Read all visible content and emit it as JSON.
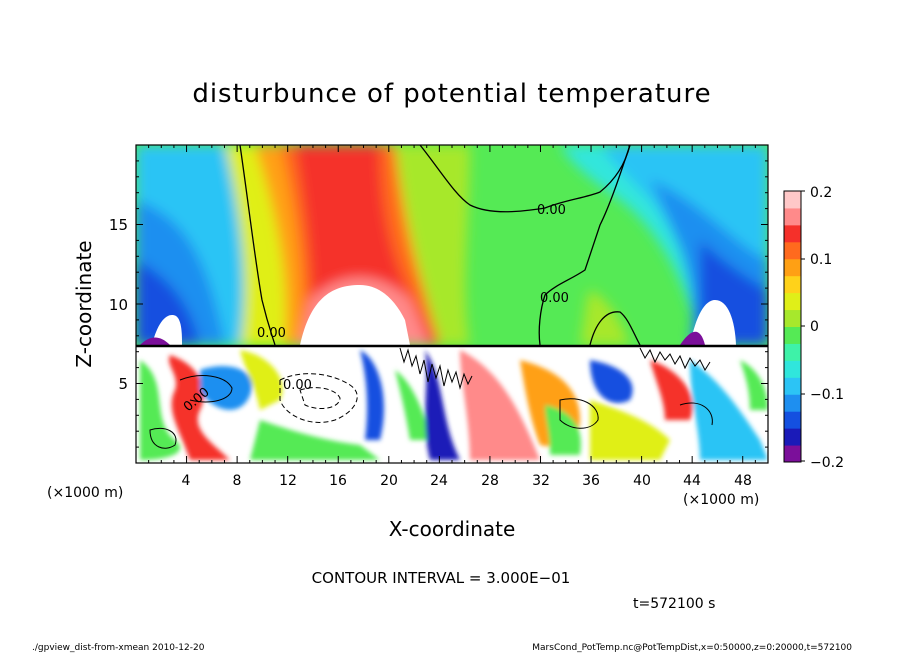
{
  "chart_data": {
    "type": "heatmap",
    "title": "disturbunce of potential temperature",
    "xlabel": "X-coordinate",
    "ylabel": "Z-coordinate",
    "x_unit": "(×1000 m)",
    "x_unit_right": "(×1000 m)",
    "xlim": [
      0,
      50
    ],
    "ylim": [
      0,
      20
    ],
    "x_ticks": [
      "4",
      "8",
      "12",
      "16",
      "20",
      "24",
      "28",
      "32",
      "36",
      "40",
      "44",
      "48"
    ],
    "y_ticks": [
      "5",
      "10",
      "15"
    ],
    "colorbar": {
      "range": [
        -0.2,
        0.2
      ],
      "tick_labels": [
        "0.2",
        "0.1",
        "0",
        "−0.1",
        "−0.2"
      ],
      "colors": [
        "#7b0f9a",
        "#1a1ab8",
        "#1450e0",
        "#1e8ff0",
        "#2cc4f5",
        "#30e6dc",
        "#3ef2a8",
        "#55ea55",
        "#a7e82c",
        "#e0ef18",
        "#ffd21a",
        "#ffa014",
        "#ff6a1e",
        "#f5302a",
        "#ff8a8a",
        "#ffc8c8"
      ]
    },
    "contour_labels": [
      "0.00",
      "0.00",
      "0.00",
      "0.00",
      "0.00"
    ],
    "contour_interval_text": "CONTOUR INTERVAL = 3.000E−01",
    "time_text": "t=572100 s"
  },
  "footer": {
    "left": "./gpview_dist-from-xmean 2010-12-20",
    "right": "MarsCond_PotTemp.nc@PotTempDist,x=0:50000,z=0:20000,t=572100"
  }
}
